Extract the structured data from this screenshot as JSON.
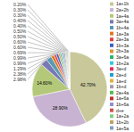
{
  "chart_data": {
    "type": "pie",
    "categories": [
      "1a+1b",
      "2a+2b",
      "1a+4a",
      "3a+4a",
      "1b+4a",
      "1a+3a",
      "2a+3a",
      "1b+3a",
      "2b+3a",
      "3a+6a",
      "1b+2a",
      "3a+d",
      "2a+d",
      "1a+d",
      "1b+d",
      "2a+4a",
      "1a+6a",
      "1b+6a",
      "d+e",
      "1a+2a",
      "1b+2b",
      "1a+5a"
    ],
    "values": [
      42.7,
      28.9,
      14.6,
      2.98,
      2.38,
      1.29,
      0.99,
      0.99,
      0.69,
      0.6,
      0.6,
      0.5,
      0.5,
      0.4,
      0.4,
      0.3,
      0.3,
      0.2,
      0.1,
      0.1,
      0.1,
      0.1
    ],
    "colors": [
      "#c8c89a",
      "#c8b4d2",
      "#b4c87a",
      "#7878b4",
      "#5a9ab4",
      "#e07820",
      "#e04040",
      "#4060c8",
      "#e09030",
      "#30b070",
      "#30c8e0",
      "#e03060",
      "#20a0d0",
      "#e0b040",
      "#a0a0a0",
      "#50c050",
      "#c03030",
      "#9090d0",
      "#d05050",
      "#80d080",
      "#c0a060",
      "#80a0c0"
    ],
    "value_labels": [
      "42.70%",
      "28.90%",
      "14.60%",
      "2.98%",
      "2.38%",
      "1.29%",
      "0.99%",
      "0.99%",
      "0.69%",
      "0.60%",
      "0.60%",
      "0.50%",
      "0.50%",
      "0.40%",
      "0.40%",
      "0.30%",
      "0.30%",
      "0.20%",
      null,
      null,
      null,
      null
    ],
    "data_labels": true,
    "legend": "right"
  }
}
